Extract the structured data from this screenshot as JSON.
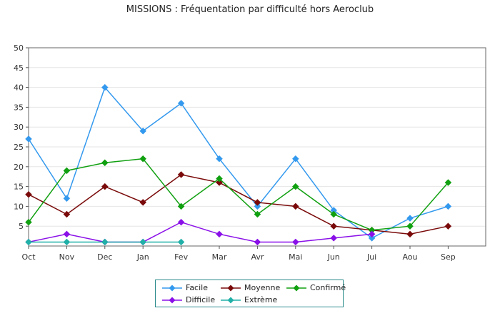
{
  "chart_data": {
    "type": "line",
    "title": "MISSIONS : Fréquentation par difficulté hors Aeroclub",
    "categories": [
      "Oct",
      "Nov",
      "Dec",
      "Jan",
      "Fev",
      "Mar",
      "Avr",
      "Mai",
      "Jun",
      "Jui",
      "Aou",
      "Sep"
    ],
    "ylim": [
      0,
      50
    ],
    "yticks": [
      5,
      10,
      15,
      20,
      25,
      30,
      35,
      40,
      45,
      50
    ],
    "grid": true,
    "legend_position": "bottom",
    "series": [
      {
        "name": "Facile",
        "color": "#3399ee",
        "values": [
          27,
          12,
          40,
          29,
          36,
          22,
          10,
          22,
          9,
          2,
          7,
          10
        ]
      },
      {
        "name": "Moyenne",
        "color": "#7a0a0a",
        "values": [
          13,
          8,
          15,
          11,
          18,
          16,
          11,
          10,
          5,
          4,
          3,
          5
        ]
      },
      {
        "name": "Confirmé",
        "color": "#10a010",
        "values": [
          6,
          19,
          21,
          22,
          10,
          17,
          8,
          15,
          8,
          4,
          5,
          16
        ]
      },
      {
        "name": "Difficile",
        "color": "#8a10e8",
        "values": [
          1,
          3,
          1,
          1,
          6,
          3,
          1,
          1,
          2,
          3,
          null,
          null
        ]
      },
      {
        "name": "Extrème",
        "color": "#20b0a8",
        "values": [
          1,
          1,
          1,
          1,
          1,
          null,
          null,
          null,
          null,
          null,
          null,
          null
        ]
      }
    ]
  }
}
